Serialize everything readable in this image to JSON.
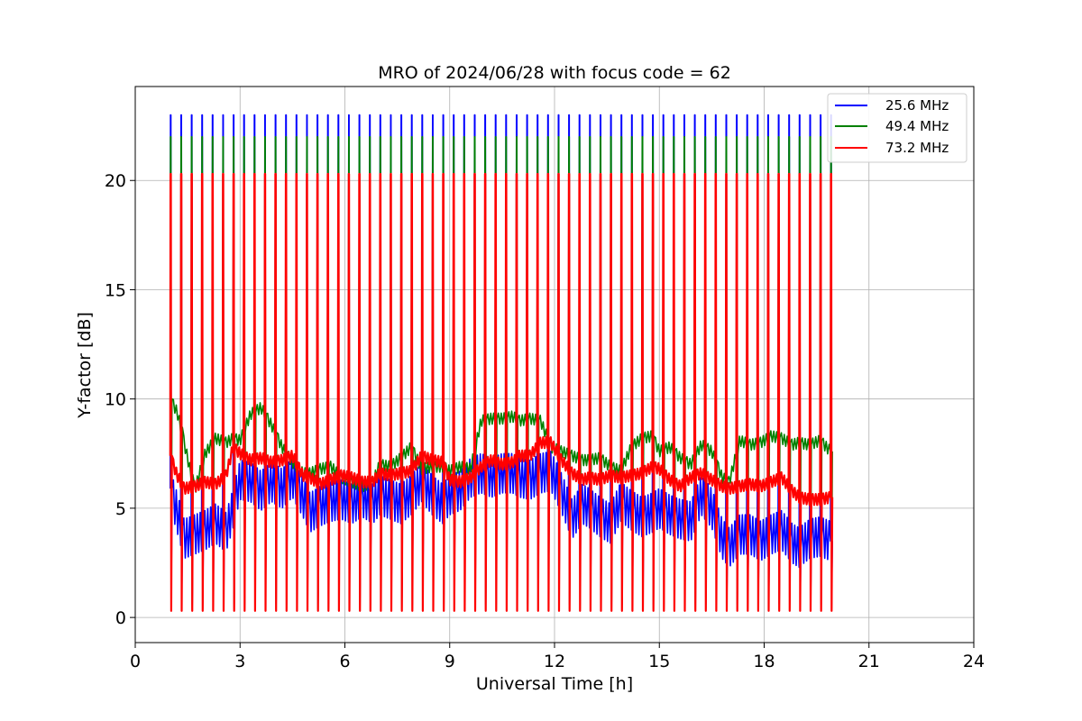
{
  "chart_data": {
    "type": "line",
    "title": "MRO of 2024/06/28 with focus code = 62",
    "xlabel": "Universal Time [h]",
    "ylabel": "Y-factor [dB]",
    "xlim": [
      0,
      24
    ],
    "ylim": [
      -1.15,
      24.3
    ],
    "xticks": [
      "0",
      "3",
      "6",
      "9",
      "12",
      "15",
      "18",
      "21",
      "24"
    ],
    "yticks": [
      "0",
      "5",
      "10",
      "15",
      "20"
    ],
    "grid": true,
    "legend_position": "top-right",
    "cal_period_h": 0.3,
    "series": [
      {
        "name": "25.6 MHz",
        "color": "#0000ff",
        "cal_high": 23.0,
        "cal_low": 0.6,
        "x": [
          1.0,
          1.2,
          1.4,
          1.7,
          2.0,
          2.3,
          2.6,
          2.8,
          3.0,
          3.3,
          3.6,
          3.9,
          4.2,
          4.5,
          4.8,
          5.0,
          5.3,
          5.6,
          5.9,
          6.2,
          6.5,
          6.8,
          7.0,
          7.3,
          7.6,
          7.9,
          8.2,
          8.5,
          8.8,
          9.0,
          9.3,
          9.6,
          9.9,
          10.2,
          10.5,
          10.8,
          11.0,
          11.3,
          11.6,
          11.9,
          12.2,
          12.5,
          12.8,
          13.0,
          13.3,
          13.6,
          13.9,
          14.2,
          14.5,
          14.8,
          15.0,
          15.3,
          15.6,
          15.9,
          16.2,
          16.5,
          16.8,
          17.0,
          17.3,
          17.6,
          17.9,
          18.2,
          18.5,
          18.8,
          19.0,
          19.3,
          19.6,
          19.9
        ],
        "y": [
          5.9,
          4.8,
          3.6,
          3.8,
          4.0,
          4.3,
          3.9,
          5.0,
          6.3,
          6.2,
          5.8,
          6.2,
          5.9,
          6.4,
          5.5,
          4.8,
          5.1,
          5.3,
          5.4,
          5.2,
          5.5,
          5.2,
          5.6,
          5.4,
          5.2,
          5.6,
          6.2,
          5.6,
          5.2,
          5.6,
          5.8,
          6.4,
          6.6,
          6.4,
          6.6,
          6.6,
          6.4,
          6.3,
          6.6,
          6.7,
          5.7,
          4.5,
          5.2,
          5.0,
          4.6,
          4.3,
          5.3,
          4.9,
          4.6,
          4.8,
          5.0,
          4.7,
          4.5,
          4.4,
          5.6,
          5.0,
          3.6,
          3.2,
          3.8,
          3.8,
          3.5,
          3.8,
          4.0,
          3.4,
          3.2,
          3.6,
          3.7,
          3.5
        ]
      },
      {
        "name": "49.4 MHz",
        "color": "#008000",
        "cal_high": 22.0,
        "cal_low": 0.4,
        "x": [
          1.0,
          1.2,
          1.4,
          1.7,
          2.0,
          2.3,
          2.6,
          2.8,
          3.0,
          3.3,
          3.6,
          3.9,
          4.2,
          4.5,
          4.8,
          5.0,
          5.3,
          5.6,
          5.9,
          6.2,
          6.5,
          6.8,
          7.0,
          7.3,
          7.6,
          7.9,
          8.2,
          8.5,
          8.8,
          9.0,
          9.3,
          9.6,
          9.9,
          10.2,
          10.5,
          10.8,
          11.0,
          11.3,
          11.6,
          11.9,
          12.2,
          12.5,
          12.8,
          13.0,
          13.3,
          13.6,
          13.9,
          14.2,
          14.5,
          14.8,
          15.0,
          15.3,
          15.6,
          15.9,
          16.2,
          16.5,
          16.8,
          17.0,
          17.3,
          17.6,
          17.9,
          18.2,
          18.5,
          18.8,
          19.0,
          19.3,
          19.6,
          19.9
        ],
        "y": [
          10.0,
          9.4,
          8.0,
          5.8,
          7.5,
          8.2,
          8.0,
          8.2,
          8.1,
          9.3,
          9.6,
          8.8,
          7.8,
          7.1,
          6.6,
          6.6,
          6.8,
          6.9,
          6.4,
          6.2,
          6.0,
          6.2,
          7.0,
          6.9,
          7.3,
          7.8,
          6.8,
          6.9,
          6.9,
          6.7,
          6.9,
          6.8,
          9.0,
          9.1,
          9.1,
          9.2,
          9.0,
          9.1,
          9.0,
          7.8,
          7.6,
          7.4,
          7.2,
          7.2,
          7.3,
          6.9,
          6.7,
          7.8,
          8.2,
          8.3,
          7.6,
          7.8,
          7.3,
          7.0,
          7.9,
          7.6,
          6.4,
          6.2,
          8.1,
          7.9,
          8.0,
          8.3,
          8.2,
          7.9,
          8.0,
          7.9,
          8.1,
          7.6
        ]
      },
      {
        "name": "73.2 MHz",
        "color": "#ff0000",
        "cal_high": 20.3,
        "cal_low": 0.3,
        "x": [
          1.0,
          1.2,
          1.4,
          1.7,
          2.0,
          2.3,
          2.6,
          2.8,
          3.0,
          3.3,
          3.6,
          3.9,
          4.2,
          4.5,
          4.8,
          5.0,
          5.3,
          5.6,
          5.9,
          6.2,
          6.5,
          6.8,
          7.0,
          7.3,
          7.6,
          7.9,
          8.2,
          8.5,
          8.8,
          9.0,
          9.3,
          9.6,
          9.9,
          10.2,
          10.5,
          10.8,
          11.0,
          11.3,
          11.6,
          11.9,
          12.2,
          12.5,
          12.8,
          13.0,
          13.3,
          13.6,
          13.9,
          14.2,
          14.5,
          14.8,
          15.0,
          15.3,
          15.6,
          15.9,
          16.2,
          16.5,
          16.8,
          17.0,
          17.3,
          17.6,
          17.9,
          18.2,
          18.5,
          18.8,
          19.0,
          19.3,
          19.6,
          19.9
        ],
        "y": [
          7.4,
          6.5,
          5.9,
          6.0,
          6.2,
          6.1,
          6.5,
          7.8,
          7.5,
          7.2,
          7.3,
          7.1,
          7.2,
          7.4,
          6.5,
          6.4,
          6.1,
          6.3,
          6.5,
          6.4,
          6.2,
          6.2,
          6.6,
          6.5,
          6.6,
          6.7,
          7.4,
          7.2,
          7.1,
          6.3,
          6.2,
          6.4,
          6.9,
          7.2,
          7.0,
          7.1,
          7.4,
          7.4,
          8.0,
          8.0,
          7.2,
          6.6,
          6.3,
          6.4,
          6.3,
          6.5,
          6.4,
          6.5,
          6.6,
          6.9,
          6.8,
          6.3,
          6.0,
          6.4,
          6.6,
          6.3,
          6.0,
          5.9,
          6.0,
          6.1,
          6.0,
          6.2,
          6.4,
          5.8,
          5.5,
          5.4,
          5.4,
          5.5
        ]
      }
    ]
  }
}
